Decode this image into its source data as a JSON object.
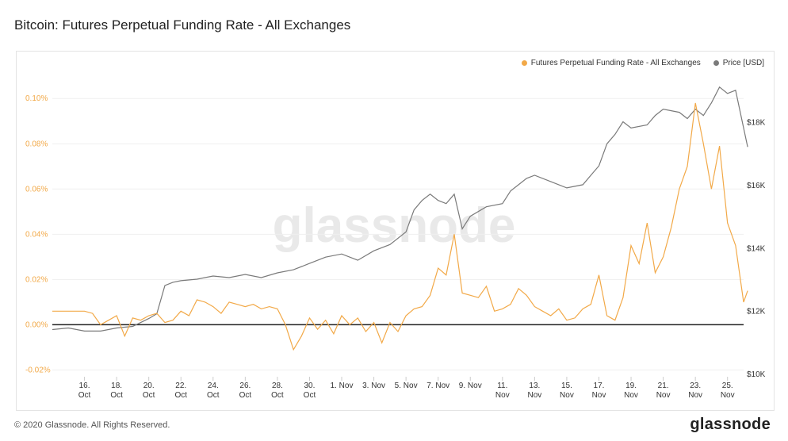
{
  "title": "Bitcoin: Futures Perpetual Funding Rate - All Exchanges",
  "legend": {
    "series1": "Futures Perpetual Funding Rate - All Exchanges",
    "series2": "Price [USD]"
  },
  "watermark": "glassnode",
  "footer": {
    "copyright": "© 2020 Glassnode. All Rights Reserved.",
    "logo": "glassnode"
  },
  "colors": {
    "funding": "#f2a948",
    "price": "#7a7a7a",
    "zero_line": "#222222"
  },
  "chart_data": {
    "type": "line",
    "left_axis": {
      "ticks": [
        -0.0002,
        0,
        0.0002,
        0.0004,
        0.0006,
        0.0008,
        0.001
      ],
      "tick_labels": [
        "-0.02%",
        "0.00%",
        "0.02%",
        "0.04%",
        "0.06%",
        "0.08%",
        "0.10%"
      ],
      "range": [
        -0.00023,
        0.00112
      ]
    },
    "right_axis": {
      "ticks": [
        10000,
        12000,
        14000,
        16000,
        18000
      ],
      "tick_labels": [
        "$10K",
        "$12K",
        "$14K",
        "$16K",
        "$18K"
      ],
      "range": [
        9900,
        19600
      ]
    },
    "x_axis": {
      "range": [
        "2020-10-14",
        "2020-11-26"
      ],
      "tick_dates": [
        "2020-10-16",
        "2020-10-18",
        "2020-10-20",
        "2020-10-22",
        "2020-10-24",
        "2020-10-26",
        "2020-10-28",
        "2020-10-30",
        "2020-11-01",
        "2020-11-03",
        "2020-11-05",
        "2020-11-07",
        "2020-11-09",
        "2020-11-11",
        "2020-11-13",
        "2020-11-15",
        "2020-11-17",
        "2020-11-19",
        "2020-11-21",
        "2020-11-23",
        "2020-11-25"
      ],
      "tick_labels": [
        [
          "16.",
          "Oct"
        ],
        [
          "18.",
          "Oct"
        ],
        [
          "20.",
          "Oct"
        ],
        [
          "22.",
          "Oct"
        ],
        [
          "24.",
          "Oct"
        ],
        [
          "26.",
          "Oct"
        ],
        [
          "28.",
          "Oct"
        ],
        [
          "30.",
          "Oct"
        ],
        [
          "1. Nov",
          ""
        ],
        [
          "3. Nov",
          ""
        ],
        [
          "5. Nov",
          ""
        ],
        [
          "7. Nov",
          ""
        ],
        [
          "9. Nov",
          ""
        ],
        [
          "11.",
          "Nov"
        ],
        [
          "13.",
          "Nov"
        ],
        [
          "15.",
          "Nov"
        ],
        [
          "17.",
          "Nov"
        ],
        [
          "19.",
          "Nov"
        ],
        [
          "21.",
          "Nov"
        ],
        [
          "23.",
          "Nov"
        ],
        [
          "25.",
          "Nov"
        ]
      ]
    },
    "series": [
      {
        "name": "Futures Perpetual Funding Rate - All Exchanges",
        "axis": "left",
        "points": [
          [
            "2020-10-14",
            6e-05
          ],
          [
            "2020-10-15",
            6e-05
          ],
          [
            "2020-10-16",
            6e-05
          ],
          [
            "2020-10-16T12",
            5e-05
          ],
          [
            "2020-10-17",
            0.0
          ],
          [
            "2020-10-17T12",
            2e-05
          ],
          [
            "2020-10-18",
            4e-05
          ],
          [
            "2020-10-18T12",
            -5e-05
          ],
          [
            "2020-10-19",
            3e-05
          ],
          [
            "2020-10-19T12",
            2e-05
          ],
          [
            "2020-10-20",
            4e-05
          ],
          [
            "2020-10-20T12",
            5e-05
          ],
          [
            "2020-10-21",
            1e-05
          ],
          [
            "2020-10-21T12",
            2e-05
          ],
          [
            "2020-10-22",
            6e-05
          ],
          [
            "2020-10-22T12",
            4e-05
          ],
          [
            "2020-10-23",
            0.00011
          ],
          [
            "2020-10-23T12",
            0.0001
          ],
          [
            "2020-10-24",
            8e-05
          ],
          [
            "2020-10-24T12",
            5e-05
          ],
          [
            "2020-10-25",
            0.0001
          ],
          [
            "2020-10-25T12",
            9e-05
          ],
          [
            "2020-10-26",
            8e-05
          ],
          [
            "2020-10-26T12",
            9e-05
          ],
          [
            "2020-10-27",
            7e-05
          ],
          [
            "2020-10-27T12",
            8e-05
          ],
          [
            "2020-10-28",
            7e-05
          ],
          [
            "2020-10-28T12",
            0.0
          ],
          [
            "2020-10-29",
            -0.00011
          ],
          [
            "2020-10-29T12",
            -5e-05
          ],
          [
            "2020-10-30",
            3e-05
          ],
          [
            "2020-10-30T12",
            -2e-05
          ],
          [
            "2020-10-31",
            2e-05
          ],
          [
            "2020-10-31T12",
            -4e-05
          ],
          [
            "2020-11-01",
            4e-05
          ],
          [
            "2020-11-01T12",
            0.0
          ],
          [
            "2020-11-02",
            3e-05
          ],
          [
            "2020-11-02T12",
            -3e-05
          ],
          [
            "2020-11-03",
            1e-05
          ],
          [
            "2020-11-03T12",
            -8e-05
          ],
          [
            "2020-11-04",
            1e-05
          ],
          [
            "2020-11-04T12",
            -3e-05
          ],
          [
            "2020-11-05",
            4e-05
          ],
          [
            "2020-11-05T12",
            7e-05
          ],
          [
            "2020-11-06",
            8e-05
          ],
          [
            "2020-11-06T12",
            0.00013
          ],
          [
            "2020-11-07",
            0.00025
          ],
          [
            "2020-11-07T12",
            0.00022
          ],
          [
            "2020-11-08",
            0.0004
          ],
          [
            "2020-11-08T12",
            0.00014
          ],
          [
            "2020-11-09",
            0.00013
          ],
          [
            "2020-11-09T12",
            0.00012
          ],
          [
            "2020-11-10",
            0.00017
          ],
          [
            "2020-11-10T12",
            6e-05
          ],
          [
            "2020-11-11",
            7e-05
          ],
          [
            "2020-11-11T12",
            9e-05
          ],
          [
            "2020-11-12",
            0.00016
          ],
          [
            "2020-11-12T12",
            0.00013
          ],
          [
            "2020-11-13",
            8e-05
          ],
          [
            "2020-11-13T12",
            6e-05
          ],
          [
            "2020-11-14",
            4e-05
          ],
          [
            "2020-11-14T12",
            7e-05
          ],
          [
            "2020-11-15",
            2e-05
          ],
          [
            "2020-11-15T12",
            3e-05
          ],
          [
            "2020-11-16",
            7e-05
          ],
          [
            "2020-11-16T12",
            9e-05
          ],
          [
            "2020-11-17",
            0.00022
          ],
          [
            "2020-11-17T12",
            4e-05
          ],
          [
            "2020-11-18",
            2e-05
          ],
          [
            "2020-11-18T12",
            0.00012
          ],
          [
            "2020-11-19",
            0.00035
          ],
          [
            "2020-11-19T12",
            0.00027
          ],
          [
            "2020-11-20",
            0.00045
          ],
          [
            "2020-11-20T12",
            0.00023
          ],
          [
            "2020-11-21",
            0.0003
          ],
          [
            "2020-11-21T12",
            0.00043
          ],
          [
            "2020-11-22",
            0.0006
          ],
          [
            "2020-11-22T12",
            0.0007
          ],
          [
            "2020-11-23",
            0.00098
          ],
          [
            "2020-11-23T12",
            0.0008
          ],
          [
            "2020-11-24",
            0.0006
          ],
          [
            "2020-11-24T12",
            0.00079
          ],
          [
            "2020-11-25",
            0.00045
          ],
          [
            "2020-11-25T12",
            0.00035
          ],
          [
            "2020-11-26",
            0.0001
          ],
          [
            "2020-11-26T06",
            0.00015
          ]
        ]
      },
      {
        "name": "Price [USD]",
        "axis": "right",
        "points": [
          [
            "2020-10-14",
            11400
          ],
          [
            "2020-10-15",
            11450
          ],
          [
            "2020-10-16",
            11350
          ],
          [
            "2020-10-17",
            11350
          ],
          [
            "2020-10-18",
            11450
          ],
          [
            "2020-10-19",
            11500
          ],
          [
            "2020-10-20",
            11750
          ],
          [
            "2020-10-20T12",
            11900
          ],
          [
            "2020-10-21",
            12800
          ],
          [
            "2020-10-21T12",
            12900
          ],
          [
            "2020-10-22",
            12950
          ],
          [
            "2020-10-23",
            13000
          ],
          [
            "2020-10-24",
            13100
          ],
          [
            "2020-10-25",
            13050
          ],
          [
            "2020-10-26",
            13150
          ],
          [
            "2020-10-27",
            13050
          ],
          [
            "2020-10-28",
            13200
          ],
          [
            "2020-10-29",
            13300
          ],
          [
            "2020-10-30",
            13500
          ],
          [
            "2020-10-31",
            13700
          ],
          [
            "2020-11-01",
            13800
          ],
          [
            "2020-11-02",
            13600
          ],
          [
            "2020-11-03",
            13900
          ],
          [
            "2020-11-04",
            14100
          ],
          [
            "2020-11-05",
            14500
          ],
          [
            "2020-11-05T12",
            15200
          ],
          [
            "2020-11-06",
            15500
          ],
          [
            "2020-11-06T12",
            15700
          ],
          [
            "2020-11-07",
            15500
          ],
          [
            "2020-11-07T12",
            15400
          ],
          [
            "2020-11-08",
            15700
          ],
          [
            "2020-11-08T12",
            14600
          ],
          [
            "2020-11-09",
            15000
          ],
          [
            "2020-11-10",
            15300
          ],
          [
            "2020-11-11",
            15400
          ],
          [
            "2020-11-11T12",
            15800
          ],
          [
            "2020-11-12",
            16000
          ],
          [
            "2020-11-12T12",
            16200
          ],
          [
            "2020-11-13",
            16300
          ],
          [
            "2020-11-14",
            16100
          ],
          [
            "2020-11-15",
            15900
          ],
          [
            "2020-11-16",
            16000
          ],
          [
            "2020-11-16T12",
            16300
          ],
          [
            "2020-11-17",
            16600
          ],
          [
            "2020-11-17T12",
            17300
          ],
          [
            "2020-11-18",
            17600
          ],
          [
            "2020-11-18T12",
            18000
          ],
          [
            "2020-11-19",
            17800
          ],
          [
            "2020-11-20",
            17900
          ],
          [
            "2020-11-20T12",
            18200
          ],
          [
            "2020-11-21",
            18400
          ],
          [
            "2020-11-22",
            18300
          ],
          [
            "2020-11-22T12",
            18100
          ],
          [
            "2020-11-23",
            18400
          ],
          [
            "2020-11-23T12",
            18200
          ],
          [
            "2020-11-24",
            18600
          ],
          [
            "2020-11-24T12",
            19100
          ],
          [
            "2020-11-25",
            18900
          ],
          [
            "2020-11-25T12",
            19000
          ],
          [
            "2020-11-26",
            17800
          ],
          [
            "2020-11-26T06",
            17200
          ]
        ]
      }
    ]
  }
}
